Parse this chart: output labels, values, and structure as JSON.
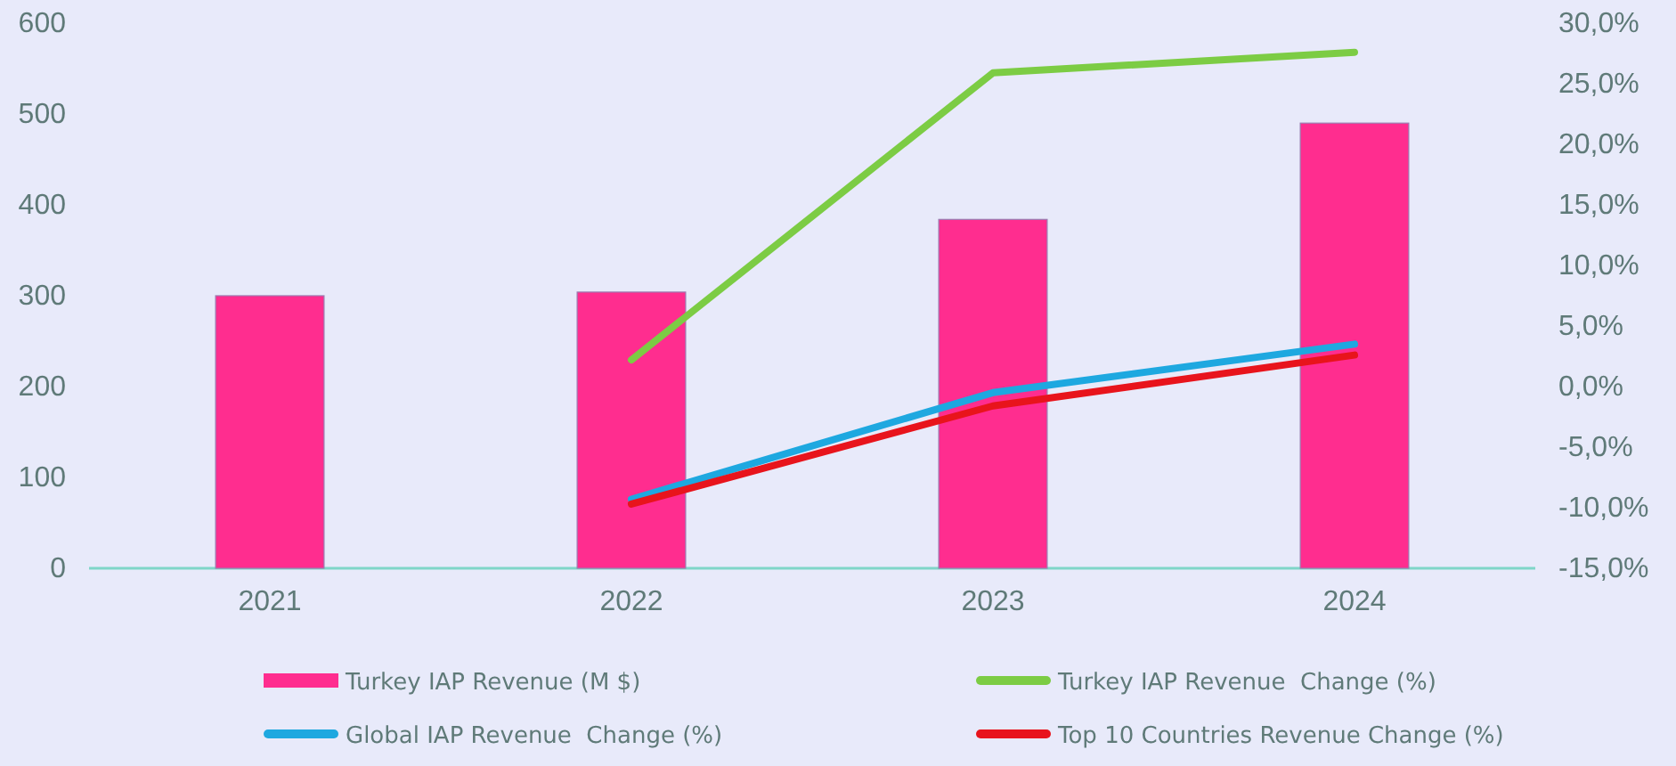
{
  "chart_data": {
    "type": "bar",
    "categories": [
      "2021",
      "2022",
      "2023",
      "2024"
    ],
    "series": [
      {
        "name": "Turkey IAP Revenue (M $)",
        "color": "#ff2d8f",
        "values": [
          300,
          304,
          384,
          490
        ]
      },
      {
        "name": "Turkey IAP Revenue  Change (%)",
        "type": "line",
        "axis": "y2",
        "color": "#7ccc44",
        "values": [
          null,
          2.2,
          25.9,
          27.6
        ]
      },
      {
        "name": "Global IAP Revenue  Change (%)",
        "type": "line",
        "axis": "y2",
        "color": "#1ea8e0",
        "values": [
          null,
          -9.3,
          -0.5,
          3.5
        ]
      },
      {
        "name": "Top 10 Countries Revenue Change (%)",
        "type": "line",
        "axis": "y2",
        "color": "#e8141c",
        "values": [
          null,
          -9.7,
          -1.6,
          2.6
        ]
      }
    ],
    "ylim": [
      0,
      600
    ],
    "yticks": [
      0,
      100,
      200,
      300,
      400,
      500,
      600
    ],
    "y2lim": [
      -15,
      30
    ],
    "y2ticks": [
      {
        "value": -15,
        "label": "-15,0%"
      },
      {
        "value": -10,
        "label": "-10,0%"
      },
      {
        "value": -5,
        "label": "-5,0%"
      },
      {
        "value": 0,
        "label": "0,0%"
      },
      {
        "value": 5,
        "label": "5,0%"
      },
      {
        "value": 10,
        "label": "10,0%"
      },
      {
        "value": 15,
        "label": "15,0%"
      },
      {
        "value": 20,
        "label": "20,0%"
      },
      {
        "value": 25,
        "label": "25,0%"
      },
      {
        "value": 30,
        "label": "30,0%"
      }
    ],
    "grid": false,
    "legend": "bottom",
    "marker": "none",
    "line_style": "solid"
  }
}
